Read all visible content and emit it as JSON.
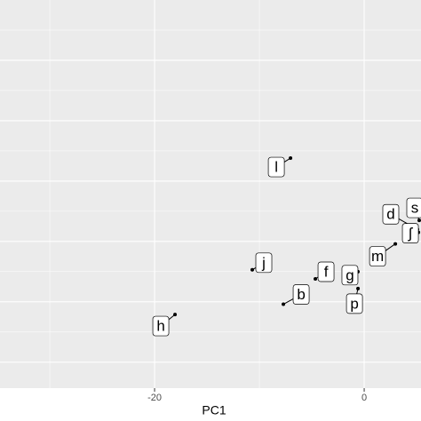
{
  "chart_data": {
    "type": "scatter",
    "x_label": "PC1",
    "points": [
      {
        "label": "l",
        "x": -7.03,
        "y": 3.38
      },
      {
        "label": "j",
        "x": -10.68,
        "y": 1.53
      },
      {
        "label": "h",
        "x": -18.05,
        "y": 0.79
      },
      {
        "label": "b",
        "x": -7.71,
        "y": 0.96
      },
      {
        "label": "f",
        "x": -4.66,
        "y": 1.38
      },
      {
        "label": "g",
        "x": -0.6,
        "y": 1.5
      },
      {
        "label": "p",
        "x": -0.59,
        "y": 1.22
      },
      {
        "label": "m",
        "x": 2.97,
        "y": 1.96
      },
      {
        "label": "d",
        "x": 5.08,
        "y": 2.2
      },
      {
        "label": "s",
        "x": 5.25,
        "y": 2.35
      },
      {
        "label": "ʃ",
        "x": 5.17,
        "y": 2.15
      }
    ],
    "color": "#000000",
    "xlim": [
      -34.75,
      5.42
    ],
    "ylim": [
      -0.43,
      6
    ],
    "xticks": [
      -20,
      0
    ],
    "xgrid_minor": [
      -30,
      -10
    ],
    "ygrid": [
      0,
      1,
      2,
      3,
      4,
      5
    ],
    "ygrid_minor": [
      0.5,
      1.5,
      2.5,
      3.5,
      4.5,
      5.5
    ],
    "grid": true
  }
}
